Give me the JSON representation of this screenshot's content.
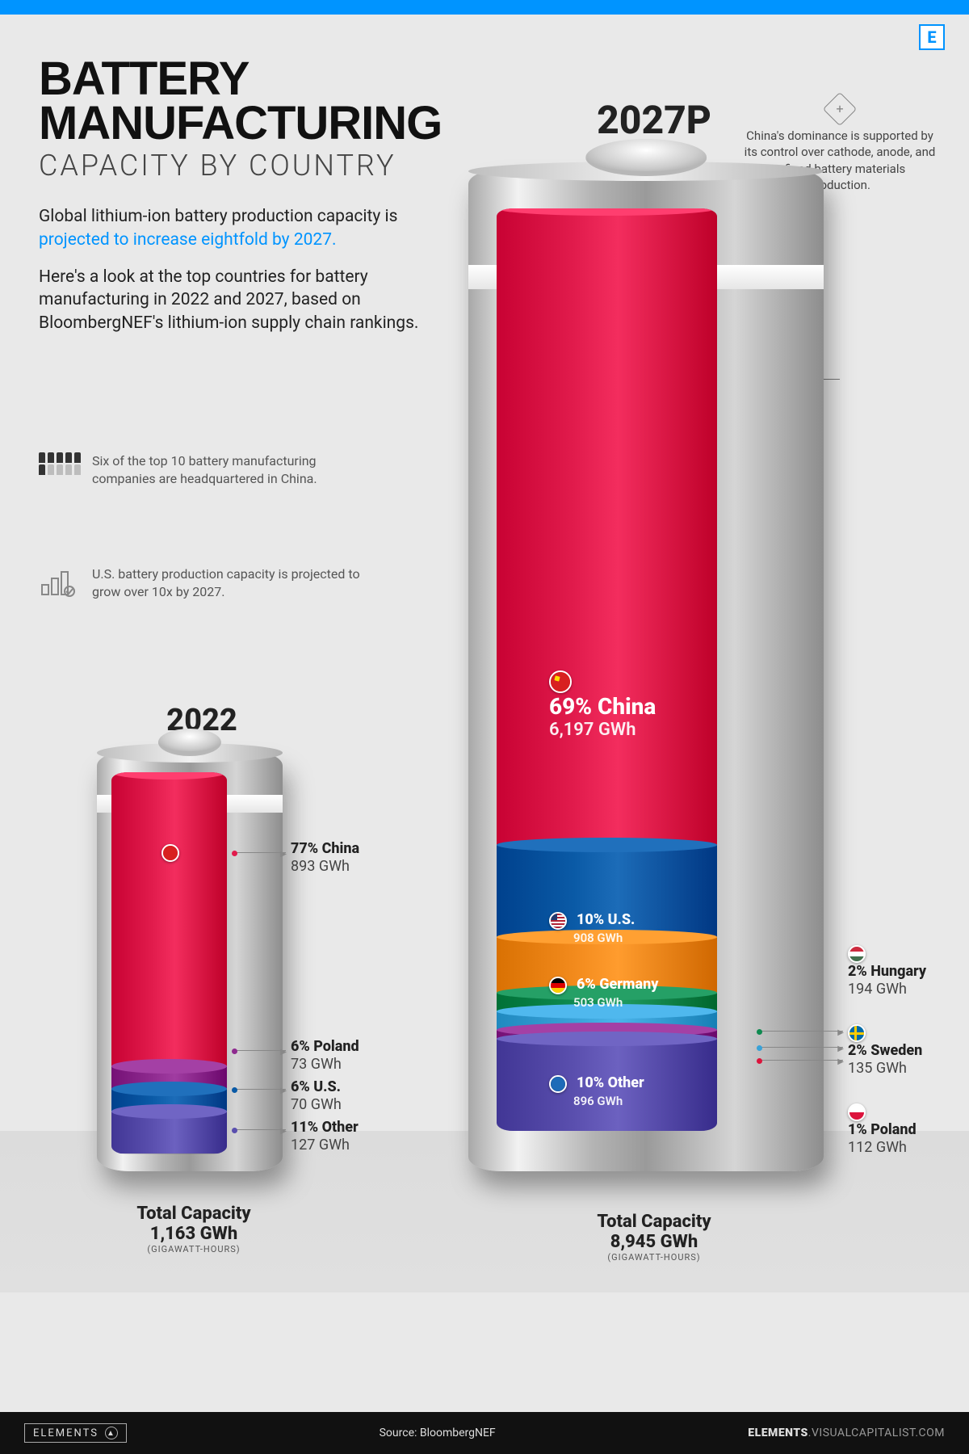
{
  "meta": {
    "logo_letter": "E",
    "topbar_color": "#0094ff",
    "background_color": "#e9e9e9"
  },
  "header": {
    "title_line1": "BATTERY",
    "title_line2": "MANUFACTURING",
    "subtitle": "CAPACITY BY COUNTRY",
    "intro_line1_a": "Global lithium-ion battery production capacity is ",
    "intro_line1_b": "projected to increase eightfold by 2027.",
    "intro_line2": "Here's a look at the top countries for battery manufacturing in 2022 and 2027, based on BloombergNEF's lithium-ion supply chain rankings."
  },
  "factoids": {
    "f1": "Six of the top 10 battery manufacturing companies are headquartered in China.",
    "f2": "U.S. battery production capacity is projected to grow over 10x by 2027."
  },
  "top_note": "China's dominance is supported by its control over cathode, anode, and refined battery materials production.",
  "years": {
    "y2022": "2022",
    "y2027": "2027P"
  },
  "colors": {
    "china": "#e11b4c",
    "china_top": "#f54d7c",
    "poland": "#8e2a8f",
    "usa": "#0a5aa6",
    "other": "#5a4fae",
    "germany": "#f28a1c",
    "hungary": "#0f8a50",
    "sweden": "#39a2d8"
  },
  "battery2022": {
    "total_label": "Total Capacity",
    "total_value": "1,163 GWh",
    "unit_note": "(GIGAWATT-HOURS)",
    "segments": [
      {
        "key": "china",
        "pct": "77% China",
        "val": "893 GWh",
        "share": 0.77
      },
      {
        "key": "poland",
        "pct": "6% Poland",
        "val": "73 GWh",
        "share": 0.06
      },
      {
        "key": "usa",
        "pct": "6% U.S.",
        "val": "70 GWh",
        "share": 0.06
      },
      {
        "key": "other",
        "pct": "11% Other",
        "val": "127 GWh",
        "share": 0.11
      }
    ]
  },
  "battery2027": {
    "total_label": "Total Capacity",
    "total_value": "8,945 GWh",
    "unit_note": "(GIGAWATT-HOURS)",
    "segments": [
      {
        "key": "china",
        "pct": "69% China",
        "val": "6,197 GWh",
        "share": 0.69
      },
      {
        "key": "usa",
        "pct": "10% U.S.",
        "val": "908 GWh",
        "share": 0.1
      },
      {
        "key": "germany",
        "pct": "6% Germany",
        "val": "503 GWh",
        "share": 0.06
      },
      {
        "key": "hungary",
        "pct": "2% Hungary",
        "val": "194 GWh",
        "share": 0.02
      },
      {
        "key": "sweden",
        "pct": "2% Sweden",
        "val": "135 GWh",
        "share": 0.02
      },
      {
        "key": "poland",
        "pct": "1% Poland",
        "val": "112 GWh",
        "share": 0.01
      },
      {
        "key": "other",
        "pct": "10% Other",
        "val": "896 GWh",
        "share": 0.1
      }
    ]
  },
  "footer": {
    "brand": "ELEMENTS",
    "source": "Source: BloombergNEF",
    "site_bold": "ELEMENTS",
    "site_rest": ".VISUALCAPITALIST.COM"
  }
}
